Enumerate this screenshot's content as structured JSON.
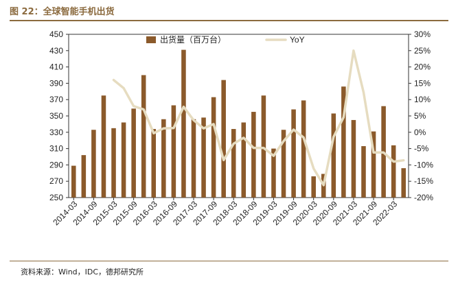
{
  "figure_title": "图 22：全球智能手机出货",
  "source_note": "资料来源：Wind，IDC，德邦研究所",
  "colors": {
    "bar": "#8B5A2B",
    "line": "#E6DCC0",
    "accent": "#8B6A3E"
  },
  "chart_data": {
    "type": "bar",
    "categories": [
      "2014-03",
      "2014-06",
      "2014-09",
      "2014-12",
      "2015-03",
      "2015-06",
      "2015-09",
      "2015-12",
      "2016-03",
      "2016-06",
      "2016-09",
      "2016-12",
      "2017-03",
      "2017-06",
      "2017-09",
      "2017-12",
      "2018-03",
      "2018-06",
      "2018-09",
      "2018-12",
      "2019-03",
      "2019-06",
      "2019-09",
      "2019-12",
      "2020-03",
      "2020-06",
      "2020-09",
      "2020-12",
      "2021-03",
      "2021-06",
      "2021-09",
      "2021-12",
      "2022-03",
      "2022-06"
    ],
    "x_tick_labels": [
      "2014-03",
      "2014-09",
      "2015-03",
      "2015-09",
      "2016-03",
      "2016-09",
      "2017-03",
      "2017-09",
      "2018-03",
      "2018-09",
      "2019-03",
      "2019-09",
      "2020-03",
      "2020-09",
      "2021-03",
      "2021-09",
      "2022-03"
    ],
    "series": [
      {
        "name": "出货量（百万台）",
        "type": "bar",
        "axis": "left",
        "values": [
          289,
          302,
          333,
          375,
          335,
          342,
          359,
          400,
          334,
          346,
          363,
          431,
          346,
          348,
          373,
          394,
          334,
          342,
          355,
          375,
          310,
          333,
          358,
          369,
          276,
          279,
          353,
          386,
          345,
          313,
          331,
          362,
          314,
          286
        ]
      },
      {
        "name": "YoY",
        "type": "line",
        "axis": "right",
        "values": [
          null,
          null,
          null,
          null,
          16,
          13.5,
          8,
          7,
          -0.3,
          1.2,
          1.3,
          7.8,
          3.7,
          1.2,
          2.5,
          -8.5,
          -3.5,
          -1.7,
          -4.8,
          -4.8,
          -7.2,
          -2.7,
          0.8,
          -1.6,
          -11.1,
          -16.2,
          -1.4,
          4.6,
          25,
          12.2,
          -6.2,
          -6.2,
          -9,
          -8.6
        ]
      }
    ],
    "y_left": {
      "min": 250,
      "max": 450,
      "ticks": [
        250,
        270,
        290,
        310,
        330,
        350,
        370,
        390,
        410,
        430,
        450
      ]
    },
    "y_right": {
      "min": -20,
      "max": 30,
      "ticks": [
        "-20%",
        "-15%",
        "-10%",
        "-5%",
        "0%",
        "5%",
        "10%",
        "15%",
        "20%",
        "25%",
        "30%"
      ]
    },
    "legend": {
      "placement": "top-center"
    }
  }
}
